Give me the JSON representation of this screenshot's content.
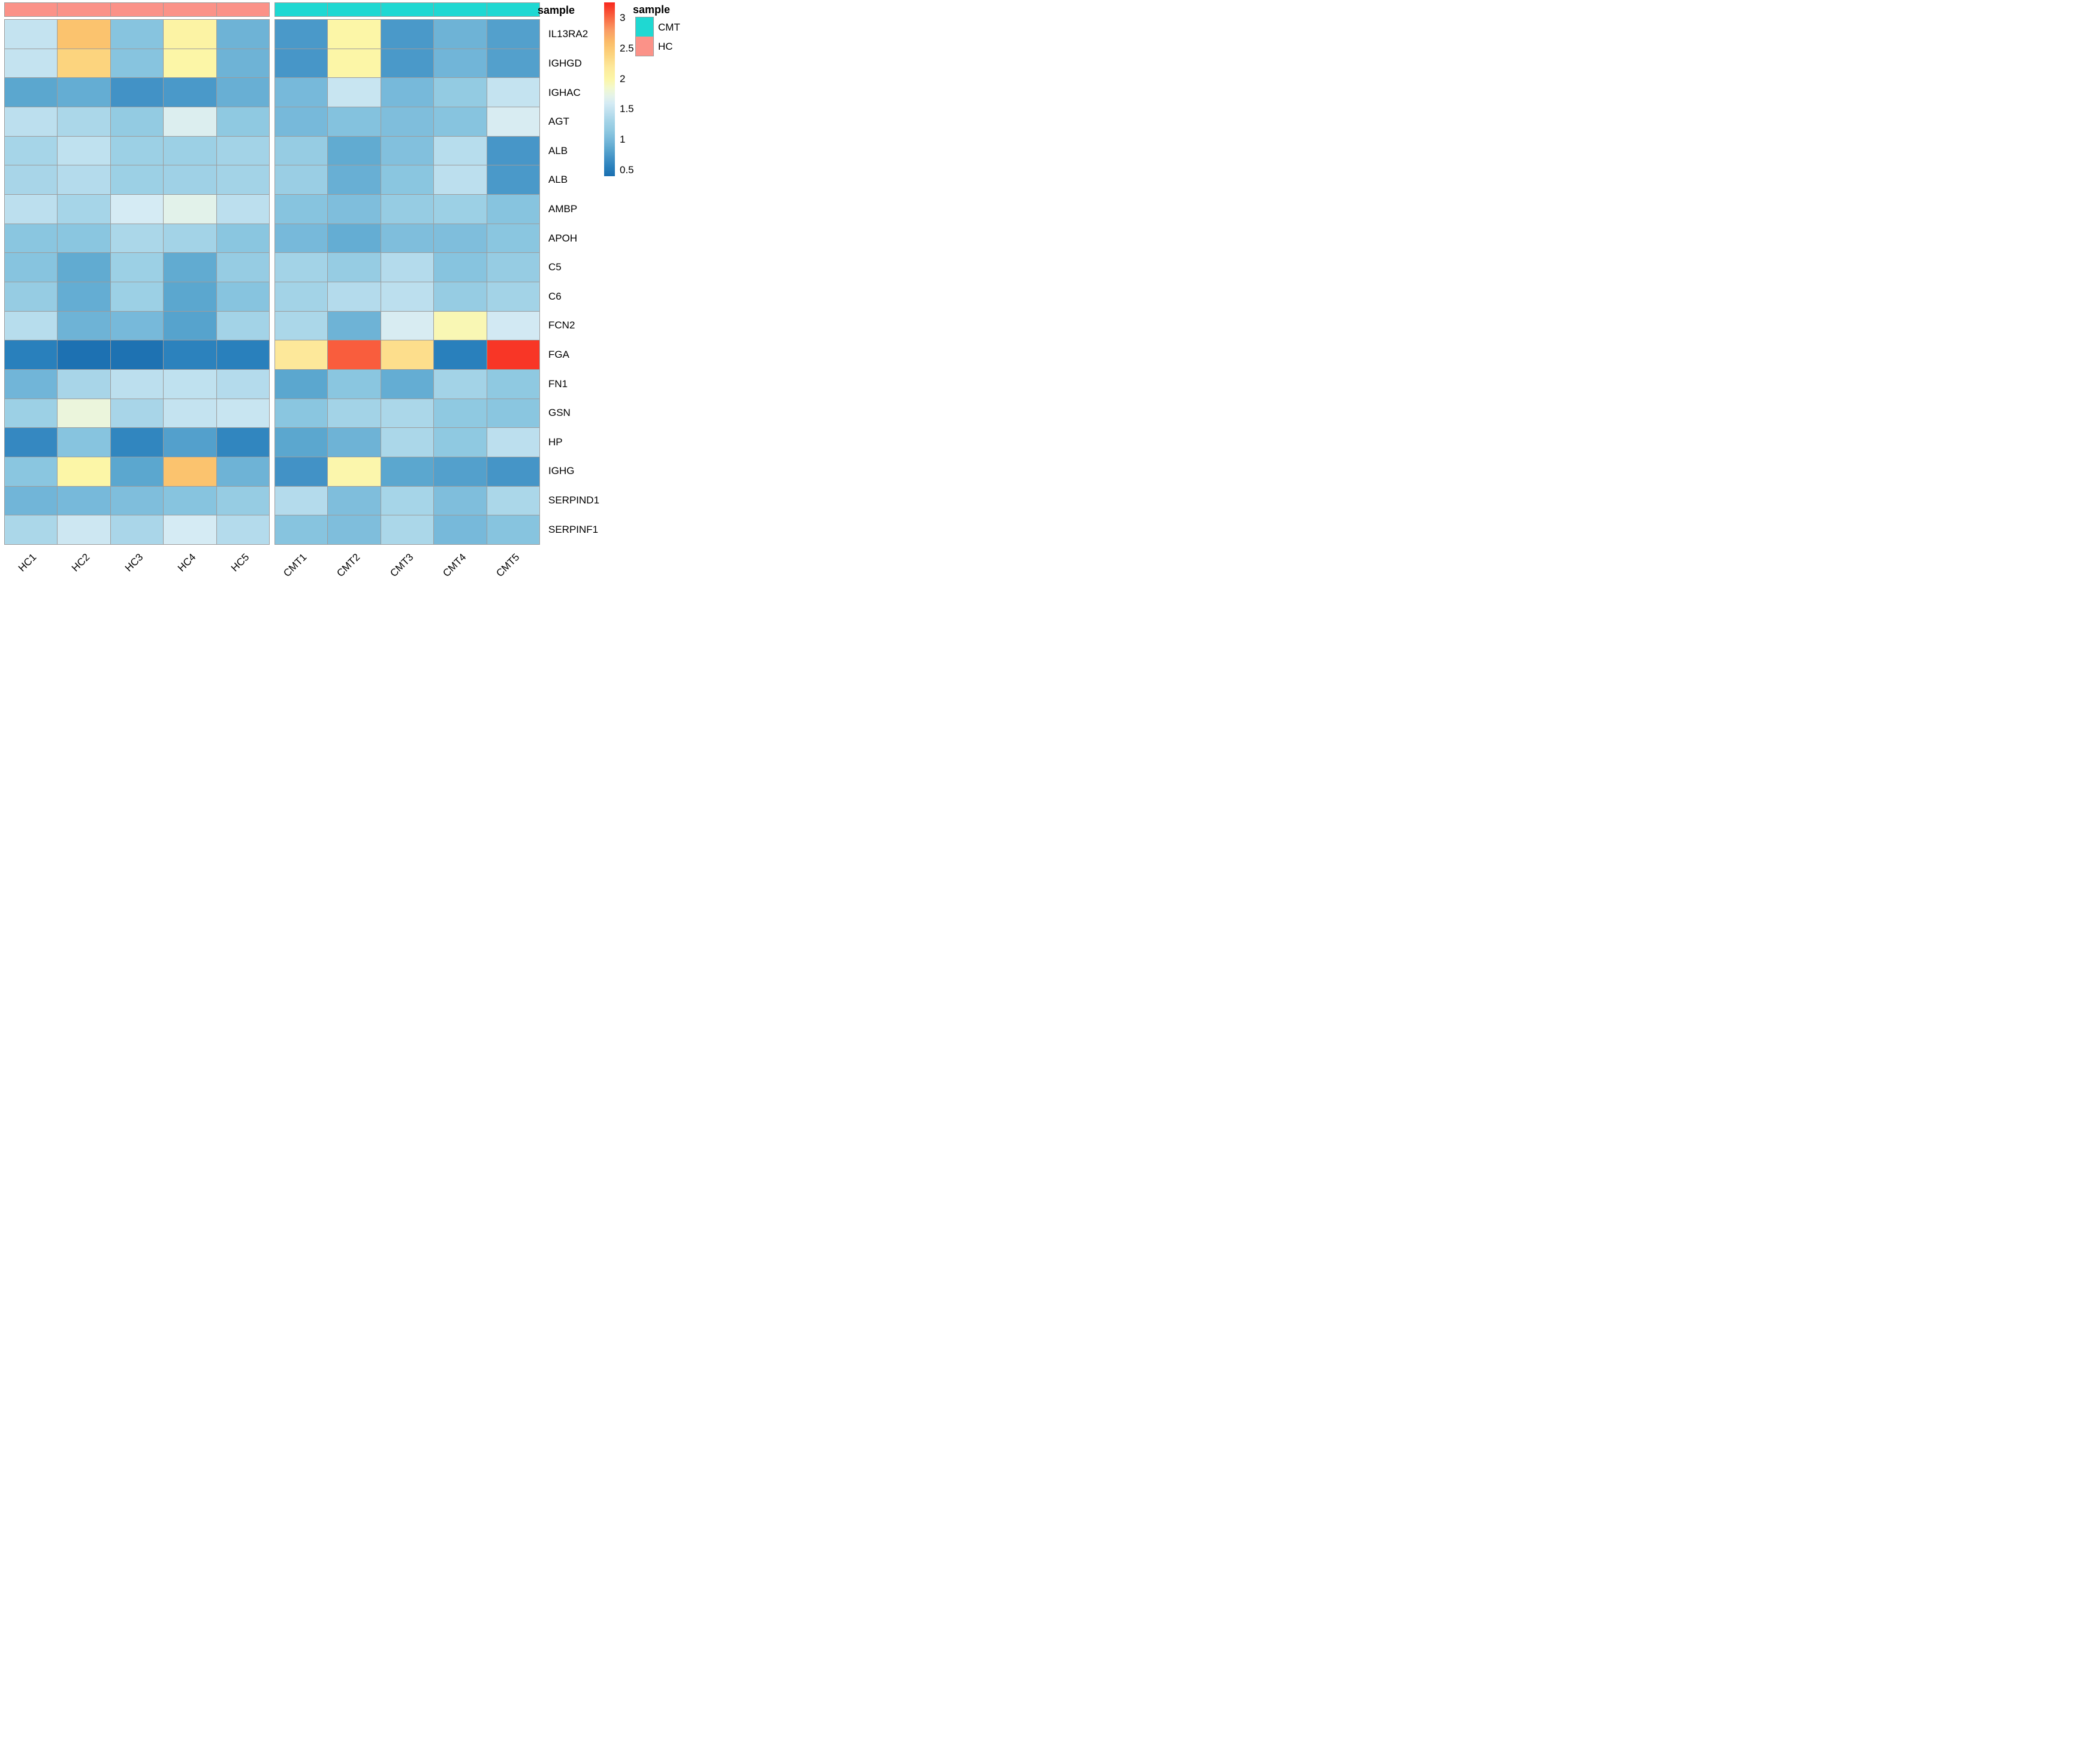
{
  "chart_data": {
    "type": "heatmap",
    "annotation_row_title": "sample",
    "columns": [
      "HC1",
      "HC2",
      "HC3",
      "HC4",
      "HC5",
      "CMT1",
      "CMT2",
      "CMT3",
      "CMT4",
      "CMT5"
    ],
    "column_groups": [
      {
        "name": "HC",
        "color": "#FB9288",
        "columns": [
          "HC1",
          "HC2",
          "HC3",
          "HC4",
          "HC5"
        ]
      },
      {
        "name": "CMT",
        "color": "#1FD8D2",
        "columns": [
          "CMT1",
          "CMT2",
          "CMT3",
          "CMT4",
          "CMT5"
        ]
      }
    ],
    "rows": [
      "IL13RA2",
      "IGHGD",
      "IGHAC",
      "AGT",
      "ALB",
      "ALB",
      "AMBP",
      "APOH",
      "C5",
      "C6",
      "FCN2",
      "FGA",
      "FN1",
      "GSN",
      "HP",
      "IGHG",
      "SERPIND1",
      "SERPINF1"
    ],
    "values": [
      [
        1.5,
        2.55,
        1.1,
        2.05,
        0.95,
        0.75,
        2.0,
        0.75,
        0.95,
        0.8
      ],
      [
        1.5,
        2.4,
        1.1,
        2.0,
        0.95,
        0.73,
        2.0,
        0.75,
        0.97,
        0.8
      ],
      [
        0.85,
        0.9,
        0.7,
        0.75,
        0.92,
        1.0,
        1.52,
        1.0,
        1.18,
        1.5
      ],
      [
        1.45,
        1.35,
        1.18,
        1.65,
        1.15,
        1.0,
        1.08,
        1.05,
        1.1,
        1.62
      ],
      [
        1.32,
        1.47,
        1.25,
        1.25,
        1.3,
        1.2,
        0.88,
        1.07,
        1.42,
        0.73
      ],
      [
        1.33,
        1.4,
        1.25,
        1.27,
        1.3,
        1.23,
        0.92,
        1.12,
        1.45,
        0.75
      ],
      [
        1.45,
        1.32,
        1.6,
        1.7,
        1.45,
        1.1,
        1.05,
        1.2,
        1.25,
        1.1
      ],
      [
        1.12,
        1.12,
        1.35,
        1.3,
        1.12,
        1.0,
        0.9,
        1.05,
        1.05,
        1.12
      ],
      [
        1.1,
        0.88,
        1.25,
        0.88,
        1.2,
        1.3,
        1.2,
        1.4,
        1.1,
        1.2
      ],
      [
        1.2,
        0.9,
        1.25,
        0.85,
        1.1,
        1.3,
        1.4,
        1.45,
        1.2,
        1.3
      ],
      [
        1.42,
        0.95,
        1.0,
        0.82,
        1.3,
        1.35,
        0.95,
        1.62,
        1.95,
        1.58
      ],
      [
        0.55,
        0.42,
        0.43,
        0.57,
        0.55,
        2.2,
        3.05,
        2.3,
        0.55,
        3.2
      ],
      [
        0.97,
        1.33,
        1.45,
        1.47,
        1.4,
        0.85,
        1.12,
        0.9,
        1.3,
        1.15
      ],
      [
        1.25,
        1.78,
        1.33,
        1.5,
        1.52,
        1.12,
        1.3,
        1.35,
        1.15,
        1.12
      ],
      [
        0.62,
        1.1,
        0.6,
        0.8,
        0.6,
        0.85,
        0.95,
        1.35,
        1.15,
        1.45
      ],
      [
        1.12,
        2.0,
        0.85,
        2.55,
        0.95,
        0.7,
        1.98,
        0.85,
        0.8,
        0.72
      ],
      [
        0.97,
        1.0,
        1.05,
        1.1,
        1.2,
        1.4,
        1.05,
        1.32,
        1.05,
        1.35
      ],
      [
        1.35,
        1.55,
        1.34,
        1.6,
        1.4,
        1.1,
        1.05,
        1.35,
        1.0,
        1.1
      ]
    ],
    "colorbar": {
      "min": 0.4,
      "max": 3.26,
      "ticks": [
        3,
        2.5,
        2,
        1.5,
        1,
        0.5
      ],
      "palette": [
        {
          "v": 0.4,
          "c": "#1B6FB0"
        },
        {
          "v": 0.55,
          "c": "#2980BC"
        },
        {
          "v": 0.7,
          "c": "#4292C6"
        },
        {
          "v": 0.85,
          "c": "#5BA7CF"
        },
        {
          "v": 1.0,
          "c": "#77B9DA"
        },
        {
          "v": 1.15,
          "c": "#8FC9E1"
        },
        {
          "v": 1.3,
          "c": "#A3D3E7"
        },
        {
          "v": 1.45,
          "c": "#BCDFEE"
        },
        {
          "v": 1.6,
          "c": "#D5EBF4"
        },
        {
          "v": 1.72,
          "c": "#E5F3E8"
        },
        {
          "v": 1.85,
          "c": "#F2F8CE"
        },
        {
          "v": 2.0,
          "c": "#FCF6A7"
        },
        {
          "v": 2.2,
          "c": "#FDE89A"
        },
        {
          "v": 2.4,
          "c": "#FCD47E"
        },
        {
          "v": 2.6,
          "c": "#FBBD69"
        },
        {
          "v": 2.8,
          "c": "#FA9C64"
        },
        {
          "v": 3.0,
          "c": "#F96A44"
        },
        {
          "v": 3.26,
          "c": "#F8271D"
        }
      ]
    },
    "legend": {
      "title": "sample",
      "entries": [
        {
          "label": "CMT",
          "color": "#1FD8D2"
        },
        {
          "label": "HC",
          "color": "#FB9288"
        }
      ]
    },
    "grid_color": "#9C9C9C"
  }
}
